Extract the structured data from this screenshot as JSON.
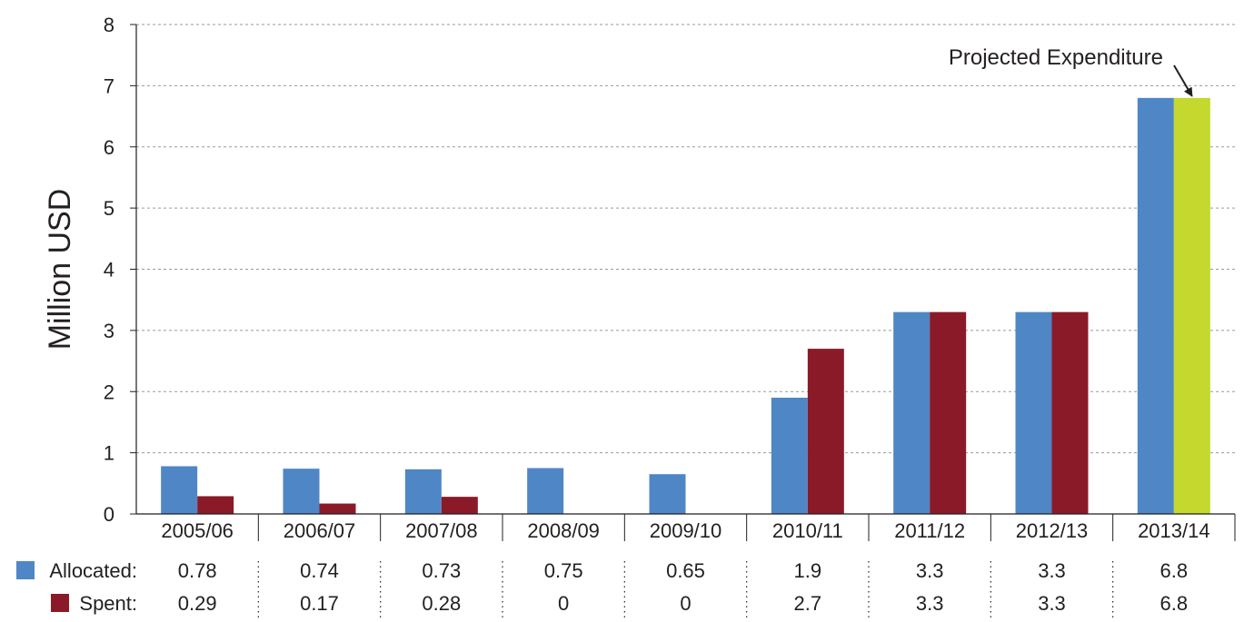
{
  "chart_data": {
    "type": "bar",
    "title": "",
    "xlabel": "",
    "ylabel": "Million USD",
    "ylim": [
      0,
      8
    ],
    "yticks": [
      0,
      1,
      2,
      3,
      4,
      5,
      6,
      7,
      8
    ],
    "grid": true,
    "categories": [
      "2005/06",
      "2006/07",
      "2007/08",
      "2008/09",
      "2009/10",
      "2010/11",
      "2011/12",
      "2012/13",
      "2013/14"
    ],
    "series": [
      {
        "name": "Allocated:",
        "color": "#4f86c6",
        "values": [
          0.78,
          0.74,
          0.73,
          0.75,
          0.65,
          1.9,
          3.3,
          3.3,
          6.8
        ],
        "labels": [
          "0.78",
          "0.74",
          "0.73",
          "0.75",
          "0.65",
          "1.9",
          "3.3",
          "3.3",
          "6.8"
        ]
      },
      {
        "name": "Spent:",
        "color": "#8b1a28",
        "values": [
          0.29,
          0.17,
          0.28,
          0,
          0,
          2.7,
          3.3,
          3.3,
          6.8
        ],
        "labels": [
          "0.29",
          "0.17",
          "0.28",
          "0",
          "0",
          "2.7",
          "3.3",
          "3.3",
          "6.8"
        ]
      }
    ],
    "highlight": {
      "category": "2013/14",
      "series": "Spent:",
      "color": "#c4d82e"
    },
    "annotation": {
      "text": "Projected Expenditure",
      "target_category": "2013/14"
    }
  }
}
